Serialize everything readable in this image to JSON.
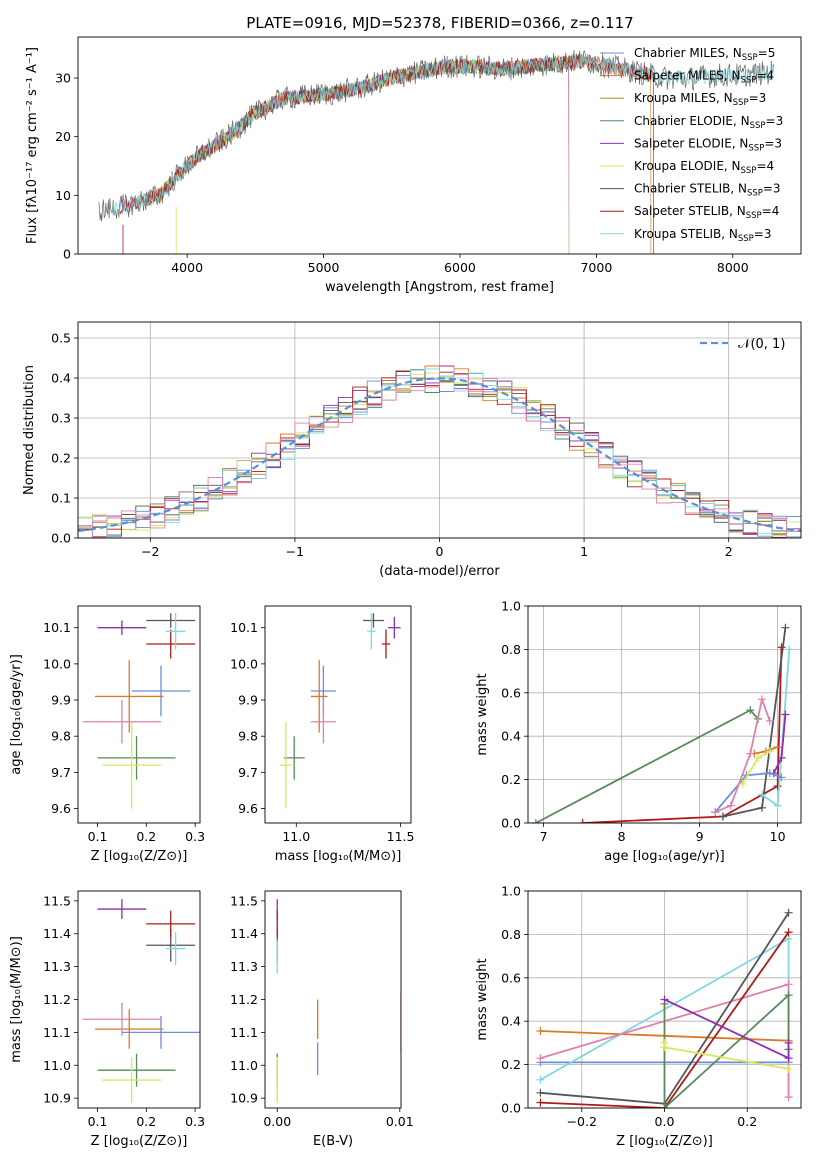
{
  "title": "PLATE=0916, MJD=52378, FIBERID=0366, z=0.117",
  "colors": {
    "Chabrier MILES": "#6a8fd6",
    "Salpeter MILES": "#d97a2a",
    "Kroupa MILES": "#b58a2a",
    "Chabrier ELODIE": "#5a8a5a",
    "Salpeter ELODIE": "#8e2fb0",
    "Kroupa ELODIE": "#d8e85a",
    "Chabrier STELIB": "#555555",
    "Salpeter STELIB": "#b01a1a",
    "Kroupa STELIB": "#7fd8e0",
    "Pink": "#e080b0"
  },
  "chart_data": [
    {
      "id": "spectrum",
      "type": "line",
      "xlabel": "wavelength [Angstrom, rest frame]",
      "ylabel": "Flux [fλ10⁻¹⁷ erg cm⁻² s⁻¹ A⁻¹]",
      "xlim": [
        3200,
        8500
      ],
      "ylim": [
        0,
        37
      ],
      "xticks": [
        4000,
        5000,
        6000,
        7000,
        8000
      ],
      "yticks": [
        0,
        10,
        20,
        30
      ],
      "legend_position": "top-right",
      "grid": false,
      "envelope": {
        "x": [
          3400,
          3600,
          3800,
          3950,
          4100,
          4300,
          4500,
          4700,
          4900,
          5100,
          5300,
          5500,
          5700,
          5900,
          6100,
          6300,
          6500,
          6700,
          6900,
          7100,
          7300,
          7500,
          7700,
          7900,
          8100,
          8300
        ],
        "y": [
          7.5,
          8.5,
          10,
          14,
          17,
          20,
          24,
          26.5,
          27,
          27.5,
          28.5,
          30,
          31,
          32,
          32,
          31.5,
          32,
          32.5,
          33,
          32,
          31,
          30,
          30,
          30.5,
          30.5,
          31
        ]
      },
      "series": [
        {
          "name": "Chabrier MILES, N_SSP=5",
          "label_main": "Chabrier MILES, N",
          "label_sub": "SSP",
          "label_tail": "=5"
        },
        {
          "name": "Salpeter MILES, N_SSP=4",
          "label_main": "Salpeter MILES, N",
          "label_sub": "SSP",
          "label_tail": "=4"
        },
        {
          "name": "Kroupa MILES, N_SSP=3",
          "label_main": "Kroupa MILES, N",
          "label_sub": "SSP",
          "label_tail": "=3"
        },
        {
          "name": "Chabrier ELODIE, N_SSP=3",
          "label_main": "Chabrier ELODIE, N",
          "label_sub": "SSP",
          "label_tail": "=3"
        },
        {
          "name": "Salpeter ELODIE, N_SSP=3",
          "label_main": "Salpeter ELODIE, N",
          "label_sub": "SSP",
          "label_tail": "=3"
        },
        {
          "name": "Kroupa ELODIE, N_SSP=4",
          "label_main": "Kroupa ELODIE, N",
          "label_sub": "SSP",
          "label_tail": "=4"
        },
        {
          "name": "Chabrier STELIB, N_SSP=3",
          "label_main": "Chabrier STELIB, N",
          "label_sub": "SSP",
          "label_tail": "=3"
        },
        {
          "name": "Salpeter STELIB, N_SSP=4",
          "label_main": "Salpeter STELIB, N",
          "label_sub": "SSP",
          "label_tail": "=4"
        },
        {
          "name": "Kroupa STELIB, N_SSP=3",
          "label_main": "Kroupa STELIB, N",
          "label_sub": "SSP",
          "label_tail": "=3"
        }
      ]
    },
    {
      "id": "residuals",
      "type": "line",
      "xlabel": "(data-model)/error",
      "ylabel": "Normed distribution",
      "xlim": [
        -2.5,
        2.5
      ],
      "ylim": [
        0,
        0.54
      ],
      "xticks": [
        -2,
        -1,
        0,
        1,
        2
      ],
      "yticks": [
        0.0,
        0.1,
        0.2,
        0.3,
        0.4,
        0.5
      ],
      "grid": true,
      "legend_position": "top-right",
      "gaussian_label": "𝒩(0, 1)",
      "bin_width": 0.1,
      "bins_start": -2.5
    },
    {
      "id": "age_vs_Z",
      "type": "scatter",
      "xlabel": "Z [log₁₀(Z/Z⊙)]",
      "ylabel": "age  [log₁₀(age/yr)]",
      "xlim": [
        0.06,
        0.31
      ],
      "ylim": [
        9.56,
        10.16
      ],
      "xticks": [
        0.1,
        0.2,
        0.3
      ],
      "yticks": [
        9.6,
        9.7,
        9.8,
        9.9,
        10.0,
        10.1
      ],
      "points": [
        {
          "c": "Chabrier MILES",
          "x": 0.23,
          "y": 9.925,
          "xe": 0.06,
          "ye": 0.07
        },
        {
          "c": "Salpeter MILES",
          "x": 0.165,
          "y": 9.91,
          "xe": 0.07,
          "ye": 0.1
        },
        {
          "c": "Chabrier ELODIE",
          "x": 0.18,
          "y": 9.74,
          "xe": 0.08,
          "ye": 0.06
        },
        {
          "c": "Salpeter ELODIE",
          "x": 0.15,
          "y": 10.1,
          "xe": 0.05,
          "ye": 0.02
        },
        {
          "c": "Kroupa ELODIE",
          "x": 0.17,
          "y": 9.72,
          "xe": 0.06,
          "ye": 0.12
        },
        {
          "c": "Chabrier STELIB",
          "x": 0.25,
          "y": 10.12,
          "xe": 0.05,
          "ye": 0.02
        },
        {
          "c": "Salpeter STELIB",
          "x": 0.25,
          "y": 10.055,
          "xe": 0.05,
          "ye": 0.04
        },
        {
          "c": "Kroupa STELIB",
          "x": 0.26,
          "y": 10.09,
          "xe": 0.02,
          "ye": 0.05
        },
        {
          "c": "Pink",
          "x": 0.15,
          "y": 9.84,
          "xe": 0.08,
          "ye": 0.06
        }
      ]
    },
    {
      "id": "age_vs_mass",
      "type": "scatter",
      "xlabel": "mass [log₁₀(M/M⊙)]",
      "ylabel": "",
      "xlim": [
        10.85,
        11.55
      ],
      "ylim": [
        9.56,
        10.16
      ],
      "xticks": [
        11.0,
        11.5
      ],
      "yticks": [
        9.6,
        9.7,
        9.8,
        9.9,
        10.0,
        10.1
      ],
      "points": [
        {
          "c": "Chabrier MILES",
          "x": 11.13,
          "y": 9.925,
          "xe": 0.06,
          "ye": 0.07
        },
        {
          "c": "Salpeter MILES",
          "x": 11.11,
          "y": 9.91,
          "xe": 0.04,
          "ye": 0.1
        },
        {
          "c": "Chabrier ELODIE",
          "x": 10.99,
          "y": 9.74,
          "xe": 0.05,
          "ye": 0.06
        },
        {
          "c": "Salpeter ELODIE",
          "x": 11.47,
          "y": 10.1,
          "xe": 0.03,
          "ye": 0.03
        },
        {
          "c": "Kroupa ELODIE",
          "x": 10.95,
          "y": 9.72,
          "xe": 0.03,
          "ye": 0.12
        },
        {
          "c": "Chabrier STELIB",
          "x": 11.37,
          "y": 10.12,
          "xe": 0.05,
          "ye": 0.02
        },
        {
          "c": "Salpeter STELIB",
          "x": 11.43,
          "y": 10.055,
          "xe": 0.02,
          "ye": 0.04
        },
        {
          "c": "Kroupa STELIB",
          "x": 11.36,
          "y": 10.09,
          "xe": 0.02,
          "ye": 0.05
        },
        {
          "c": "Pink",
          "x": 11.13,
          "y": 9.84,
          "xe": 0.06,
          "ye": 0.06
        }
      ]
    },
    {
      "id": "weight_vs_age",
      "type": "line",
      "xlabel": "age  [log₁₀(age/yr)]",
      "ylabel": "mass weight",
      "xlim": [
        6.8,
        10.3
      ],
      "ylim": [
        0,
        1.0
      ],
      "xticks": [
        7,
        8,
        9,
        10
      ],
      "yticks": [
        0.0,
        0.2,
        0.4,
        0.6,
        0.8,
        1.0
      ],
      "grid": true,
      "series": [
        {
          "c": "Chabrier ELODIE",
          "x": [
            6.9,
            9.65,
            9.75
          ],
          "y": [
            0.0,
            0.52,
            0.48
          ]
        },
        {
          "c": "Salpeter STELIB",
          "x": [
            7.5,
            9.3,
            10.0,
            10.05
          ],
          "y": [
            0.0,
            0.03,
            0.17,
            0.81
          ]
        },
        {
          "c": "Chabrier STELIB",
          "x": [
            9.3,
            9.8,
            10.1
          ],
          "y": [
            0.03,
            0.07,
            0.9
          ]
        },
        {
          "c": "Kroupa STELIB",
          "x": [
            9.8,
            10.0,
            10.15
          ],
          "y": [
            0.13,
            0.08,
            0.8
          ]
        },
        {
          "c": "Salpeter ELODIE",
          "x": [
            9.95,
            10.05,
            10.1
          ],
          "y": [
            0.23,
            0.3,
            0.5
          ]
        },
        {
          "c": "Chabrier MILES",
          "x": [
            9.2,
            9.6,
            9.9,
            10.05
          ],
          "y": [
            0.05,
            0.22,
            0.23,
            0.21
          ]
        },
        {
          "c": "Salpeter MILES",
          "x": [
            9.7,
            9.85,
            10.0
          ],
          "y": [
            0.32,
            0.33,
            0.35
          ]
        },
        {
          "c": "Kroupa ELODIE",
          "x": [
            9.55,
            9.75,
            9.9
          ],
          "y": [
            0.18,
            0.3,
            0.33
          ]
        },
        {
          "c": "Pink",
          "x": [
            9.2,
            9.4,
            9.65,
            9.8,
            9.9
          ],
          "y": [
            0.05,
            0.08,
            0.32,
            0.57,
            0.47
          ]
        }
      ]
    },
    {
      "id": "mass_vs_Z",
      "type": "scatter",
      "xlabel": "Z [log₁₀(Z/Z⊙)]",
      "ylabel": "mass [log₁₀(M/M⊙)]",
      "xlim": [
        0.06,
        0.31
      ],
      "ylim": [
        10.87,
        11.53
      ],
      "xticks": [
        0.1,
        0.2,
        0.3
      ],
      "yticks": [
        10.9,
        11.0,
        11.1,
        11.2,
        11.3,
        11.4,
        11.5
      ],
      "points": [
        {
          "c": "Chabrier MILES",
          "x": 0.23,
          "y": 11.1,
          "xe": 0.08,
          "ye": 0.05
        },
        {
          "c": "Salpeter MILES",
          "x": 0.165,
          "y": 11.11,
          "xe": 0.07,
          "ye": 0.06
        },
        {
          "c": "Chabrier ELODIE",
          "x": 0.18,
          "y": 10.985,
          "xe": 0.08,
          "ye": 0.05
        },
        {
          "c": "Salpeter ELODIE",
          "x": 0.15,
          "y": 11.475,
          "xe": 0.05,
          "ye": 0.03
        },
        {
          "c": "Kroupa ELODIE",
          "x": 0.17,
          "y": 10.955,
          "xe": 0.06,
          "ye": 0.07
        },
        {
          "c": "Chabrier STELIB",
          "x": 0.25,
          "y": 11.365,
          "xe": 0.05,
          "ye": 0.05
        },
        {
          "c": "Salpeter STELIB",
          "x": 0.25,
          "y": 11.43,
          "xe": 0.05,
          "ye": 0.04
        },
        {
          "c": "Kroupa STELIB",
          "x": 0.26,
          "y": 11.355,
          "xe": 0.02,
          "ye": 0.05
        },
        {
          "c": "Pink",
          "x": 0.15,
          "y": 11.14,
          "xe": 0.08,
          "ye": 0.05
        }
      ]
    },
    {
      "id": "mass_vs_ebv",
      "type": "scatter",
      "xlabel": "E(B-V)",
      "ylabel": "",
      "xlim": [
        -0.001,
        0.0101
      ],
      "ylim": [
        10.87,
        11.53
      ],
      "xticks": [
        0.0,
        0.01
      ],
      "xticklabels": [
        "0.00",
        "0.01"
      ],
      "yticks": [
        10.9,
        11.0,
        11.1,
        11.2,
        11.3,
        11.4,
        11.5
      ],
      "points": [
        {
          "c": "Chabrier MILES",
          "x": 0.0033,
          "y": 11.02,
          "xe": 0,
          "ye": 0.05
        },
        {
          "c": "Salpeter MILES",
          "x": 0.0033,
          "y": 11.14,
          "xe": 0,
          "ye": 0.06
        },
        {
          "c": "Chabrier ELODIE",
          "x": 0.0,
          "y": 10.985,
          "xe": 0,
          "ye": 0.05
        },
        {
          "c": "Salpeter ELODIE",
          "x": 0.0,
          "y": 11.475,
          "xe": 0,
          "ye": 0.03
        },
        {
          "c": "Kroupa ELODIE",
          "x": 0.0,
          "y": 10.955,
          "xe": 0,
          "ye": 0.07
        },
        {
          "c": "Chabrier STELIB",
          "x": 0.0,
          "y": 11.365,
          "xe": 0,
          "ye": 0.05
        },
        {
          "c": "Salpeter STELIB",
          "x": 0.0,
          "y": 11.43,
          "xe": 0,
          "ye": 0.04
        },
        {
          "c": "Kroupa STELIB",
          "x": 0.0,
          "y": 11.33,
          "xe": 0,
          "ye": 0.05
        },
        {
          "c": "Pink",
          "x": 0.0101,
          "y": 11.13,
          "xe": 0,
          "ye": 0.09
        }
      ]
    },
    {
      "id": "weight_vs_Z",
      "type": "line",
      "xlabel": "Z [log₁₀(Z/Z⊙)]",
      "ylabel": "mass weight",
      "xlim": [
        -0.33,
        0.33
      ],
      "ylim": [
        0,
        1.0
      ],
      "xticks": [
        -0.2,
        0.0,
        0.2
      ],
      "xticklabels": [
        "−0.2",
        "0.0",
        "0.2"
      ],
      "yticks": [
        0.0,
        0.2,
        0.4,
        0.6,
        0.8,
        1.0
      ],
      "grid": true,
      "series": [
        {
          "c": "Chabrier MILES",
          "x": [
            -0.3,
            0.3
          ],
          "y": [
            0.21,
            0.21
          ]
        },
        {
          "c": "Salpeter MILES",
          "x": [
            -0.3,
            0.3
          ],
          "y": [
            0.355,
            0.31
          ]
        },
        {
          "c": "Kroupa STELIB",
          "x": [
            -0.3,
            0.3,
            0.3
          ],
          "y": [
            0.13,
            0.78,
            0.05
          ]
        },
        {
          "c": "Pink",
          "x": [
            -0.3,
            0.3,
            0.3
          ],
          "y": [
            0.23,
            0.57,
            0.05
          ]
        },
        {
          "c": "Chabrier STELIB",
          "x": [
            -0.3,
            0.0,
            0.3
          ],
          "y": [
            0.07,
            0.02,
            0.9
          ]
        },
        {
          "c": "Salpeter STELIB",
          "x": [
            -0.3,
            0.0,
            0.3
          ],
          "y": [
            0.025,
            0.0,
            0.81
          ]
        },
        {
          "c": "Chabrier ELODIE",
          "x": [
            0.0,
            0.0,
            0.3,
            0.3
          ],
          "y": [
            0.48,
            0.0,
            0.52,
            0.27
          ]
        },
        {
          "c": "Salpeter ELODIE",
          "x": [
            0.0,
            0.3,
            0.3
          ],
          "y": [
            0.5,
            0.23,
            0.3
          ]
        },
        {
          "c": "Kroupa ELODIE",
          "x": [
            0.0,
            0.0,
            0.3
          ],
          "y": [
            0.3,
            0.28,
            0.18
          ]
        }
      ]
    }
  ]
}
